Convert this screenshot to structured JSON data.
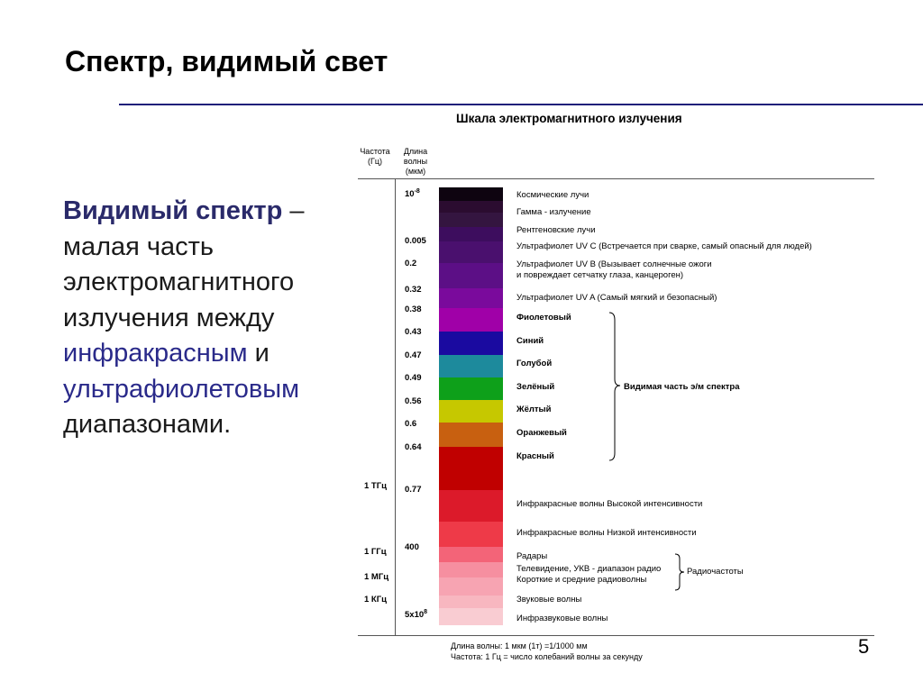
{
  "slide": {
    "title": "Спектр, видимый свет",
    "lead_bold": "Видимый спектр",
    "lead_dash": " –",
    "lead_1": "малая часть",
    "lead_2": "электромагнитного",
    "lead_3": "излучения между",
    "lead_ir": "инфракрасным",
    "lead_and": " и",
    "lead_uv": "ультрафиолетовым",
    "lead_4": "диапазонами.",
    "page_number": "5"
  },
  "figure": {
    "title": "Шкала электромагнитного излучения",
    "col_freq_header": [
      "Частота",
      "(Гц)"
    ],
    "col_wave_header": [
      "Длина",
      "волны",
      "(мкм)"
    ],
    "wavelengths": [
      "10",
      "-8",
      "0.005",
      "0.2",
      "0.32",
      "0.38",
      "0.43",
      "0.47",
      "0.49",
      "0.56",
      "0.6",
      "0.64",
      "0.77",
      "400",
      "5x10",
      "8"
    ],
    "frequencies": [
      "1 ТГц",
      "1 ГГц",
      "1 МГц",
      "1 КГц"
    ],
    "band_colors": [
      "#0e0410",
      "#2b0c30",
      "#341540",
      "#3d0d5e",
      "#4a106e",
      "#5c0f86",
      "#7a0a9c",
      "#a000a8",
      "#1a0aa0",
      "#1d8a9c",
      "#0ea01a",
      "#c6c800",
      "#c86010",
      "#c00000",
      "#dc1a2a",
      "#ee3a48",
      "#f36478",
      "#f68fa0",
      "#f7a4b2",
      "#f8b7c0",
      "#f9ccd2"
    ],
    "labels": [
      "Космические лучи",
      "Гамма - излучение",
      "Рентгеновские лучи",
      "Ультрафиолет UV C (Встречается при сварке, самый опасный для людей)",
      "Ультрафиолет UV B (Вызывает солнечные ожоги",
      "и повреждает сетчатку глаза, канцероген)",
      "Ультрафиолет UV A (Самый мягкий и безопасный)",
      "Фиолетовый",
      "Синий",
      "Голубой",
      "Зелёный",
      "Жёлтый",
      "Оранжевый",
      "Красный",
      "Инфракрасные волны Высокой интенсивности",
      "Инфракрасные волны Низкой интенсивности",
      "Радары",
      "Телевидение, УКВ - диапазон радио",
      "Короткие и средние радиоволны",
      "Звуковые волны",
      "Инфразвуковые волны"
    ],
    "visible_group": "Видимая часть э/м спектра",
    "radio_group": "Радиочастоты",
    "footnote_1": "Длина волны: 1 мкм (1т) =1/1000 мм",
    "footnote_2": "Частота: 1 Гц = число колебаний волны за секунду"
  }
}
